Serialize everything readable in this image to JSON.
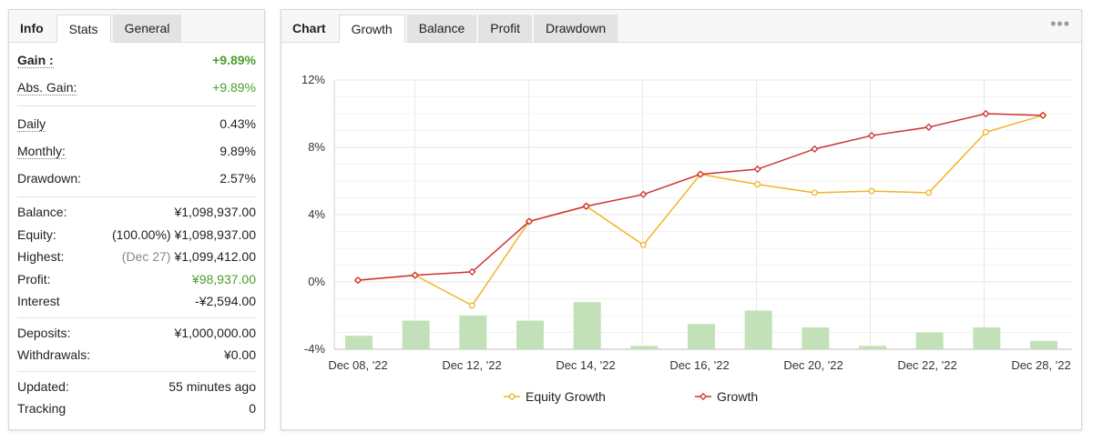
{
  "left_tabs": [
    {
      "label": "Info",
      "active": false,
      "title": true
    },
    {
      "label": "Stats",
      "active": true
    },
    {
      "label": "General",
      "active": false
    }
  ],
  "stats": {
    "gain": {
      "label": "Gain :",
      "value": "+9.89%"
    },
    "abs_gain": {
      "label": "Abs. Gain:",
      "value": "+9.89%"
    },
    "daily": {
      "label": "Daily",
      "value": "0.43%"
    },
    "monthly": {
      "label": "Monthly:",
      "value": "9.89%"
    },
    "drawdown": {
      "label": "Drawdown:",
      "value": "2.57%"
    },
    "balance": {
      "label": "Balance:",
      "value": "¥1,098,937.00"
    },
    "equity": {
      "label": "Equity:",
      "note": "(100.00%)",
      "value": "¥1,098,937.00"
    },
    "highest": {
      "label": "Highest:",
      "note": "(Dec 27)",
      "value": "¥1,099,412.00"
    },
    "profit": {
      "label": "Profit:",
      "value": "¥98,937.00"
    },
    "interest": {
      "label": "Interest",
      "value": "-¥2,594.00"
    },
    "deposits": {
      "label": "Deposits:",
      "value": "¥1,000,000.00"
    },
    "withdrawals": {
      "label": "Withdrawals:",
      "value": "¥0.00"
    },
    "updated": {
      "label": "Updated:",
      "value": "55 minutes ago"
    },
    "tracking": {
      "label": "Tracking",
      "value": "0"
    }
  },
  "right_tabs": [
    {
      "label": "Chart",
      "title": true
    },
    {
      "label": "Growth",
      "active": true
    },
    {
      "label": "Balance"
    },
    {
      "label": "Profit"
    },
    {
      "label": "Drawdown"
    }
  ],
  "menu_icon": "more-dots-icon",
  "colors": {
    "green_text": "#4aa02c",
    "equity_line": "#f0b429",
    "growth_line": "#cc3333",
    "bars": "#c3e1b8"
  },
  "chart_data": {
    "type": "line",
    "x_tick_labels": [
      "Dec 08, '22",
      "Dec 12, '22",
      "Dec 14, '22",
      "Dec 16, '22",
      "Dec 20, '22",
      "Dec 22, '22",
      "Dec 28, '22"
    ],
    "y_tick_labels": [
      "12%",
      "8%",
      "4%",
      "0%",
      "-4%"
    ],
    "y_ticks": [
      12,
      8,
      4,
      0,
      -4
    ],
    "ylim": [
      -4,
      12
    ],
    "point_count": 13,
    "series": [
      {
        "name": "Equity Growth",
        "values": [
          0.1,
          0.4,
          -1.4,
          3.6,
          4.5,
          2.2,
          6.4,
          5.8,
          5.3,
          5.4,
          5.3,
          8.9,
          9.9
        ]
      },
      {
        "name": "Growth",
        "values": [
          0.1,
          0.4,
          0.6,
          3.6,
          4.5,
          5.2,
          6.4,
          6.7,
          7.9,
          8.7,
          9.2,
          10.0,
          9.9
        ]
      }
    ],
    "bars": {
      "values": [
        -3.2,
        -2.3,
        -2.0,
        -2.3,
        -1.2,
        -3.8,
        -2.5,
        -1.7,
        -2.7,
        -3.8,
        -3.0,
        -2.7,
        -3.5
      ]
    },
    "legend": [
      "Equity Growth",
      "Growth"
    ],
    "legend_position": "bottom",
    "grid": true
  }
}
